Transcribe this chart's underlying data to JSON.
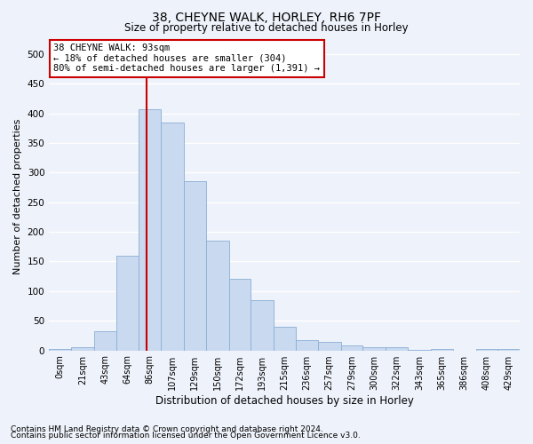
{
  "title_line1": "38, CHEYNE WALK, HORLEY, RH6 7PF",
  "title_line2": "Size of property relative to detached houses in Horley",
  "xlabel": "Distribution of detached houses by size in Horley",
  "ylabel": "Number of detached properties",
  "footnote1": "Contains HM Land Registry data © Crown copyright and database right 2024.",
  "footnote2": "Contains public sector information licensed under the Open Government Licence v3.0.",
  "annotation_line1": "38 CHEYNE WALK: 93sqm",
  "annotation_line2": "← 18% of detached houses are smaller (304)",
  "annotation_line3": "80% of semi-detached houses are larger (1,391) →",
  "property_size_sqm": 93,
  "bar_labels": [
    "0sqm",
    "21sqm",
    "43sqm",
    "64sqm",
    "86sqm",
    "107sqm",
    "129sqm",
    "150sqm",
    "172sqm",
    "193sqm",
    "215sqm",
    "236sqm",
    "257sqm",
    "279sqm",
    "300sqm",
    "322sqm",
    "343sqm",
    "365sqm",
    "386sqm",
    "408sqm",
    "429sqm"
  ],
  "bar_values": [
    3,
    5,
    33,
    160,
    407,
    385,
    285,
    185,
    120,
    85,
    40,
    18,
    15,
    8,
    5,
    5,
    1,
    3,
    0,
    2,
    2
  ],
  "bar_edges": [
    0,
    21,
    43,
    64,
    86,
    107,
    129,
    150,
    172,
    193,
    215,
    236,
    257,
    279,
    300,
    322,
    343,
    365,
    386,
    408,
    429,
    450
  ],
  "bar_color": "#c9d9f0",
  "bar_edgecolor": "#8aafd4",
  "vline_x": 93,
  "vline_color": "#cc0000",
  "ylim": [
    0,
    520
  ],
  "xlim": [
    0,
    450
  ],
  "yticks": [
    0,
    50,
    100,
    150,
    200,
    250,
    300,
    350,
    400,
    450,
    500
  ],
  "background_color": "#eef2fa",
  "grid_color": "#ffffff",
  "annotation_box_edgecolor": "#cc0000",
  "annotation_box_facecolor": "#ffffff",
  "title_fontsize": 10,
  "subtitle_fontsize": 8.5,
  "ylabel_fontsize": 8,
  "xlabel_fontsize": 8.5,
  "tick_fontsize": 7,
  "footnote_fontsize": 6.5,
  "annotation_fontsize": 7.5
}
